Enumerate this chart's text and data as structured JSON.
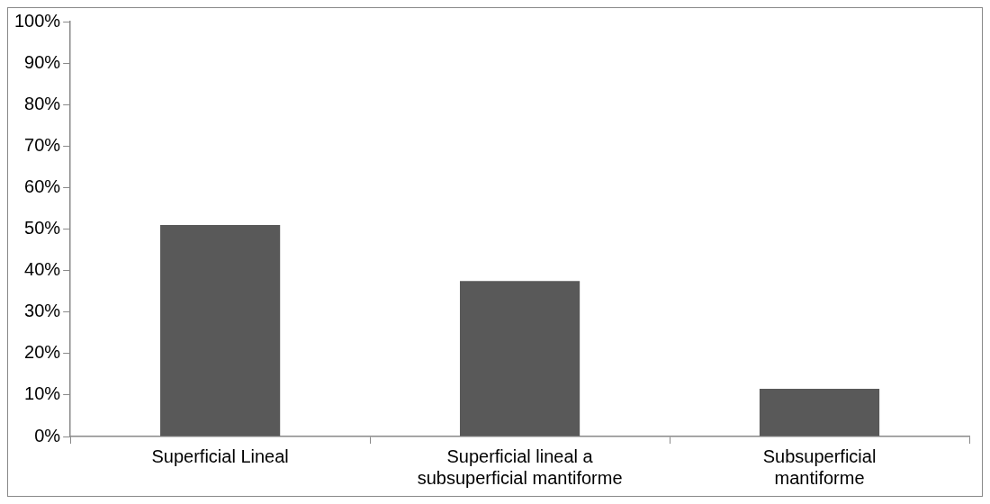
{
  "chart_data": {
    "type": "bar",
    "categories": [
      "Superficial Lineal",
      "Superficial lineal a subsuperficial mantiforme",
      "Subsuperficial mantiforme"
    ],
    "values": [
      51,
      37.5,
      11.5
    ],
    "color": "#595959",
    "ylim": [
      0,
      100
    ],
    "yticks": [
      {
        "value": 0,
        "label": "0%"
      },
      {
        "value": 10,
        "label": "10%"
      },
      {
        "value": 20,
        "label": "20%"
      },
      {
        "value": 30,
        "label": "30%"
      },
      {
        "value": 40,
        "label": "40%"
      },
      {
        "value": 50,
        "label": "50%"
      },
      {
        "value": 60,
        "label": "60%"
      },
      {
        "value": 70,
        "label": "70%"
      },
      {
        "value": 80,
        "label": "80%"
      },
      {
        "value": 90,
        "label": "90%"
      },
      {
        "value": 100,
        "label": "100%"
      }
    ],
    "grid": false,
    "legend": false
  }
}
